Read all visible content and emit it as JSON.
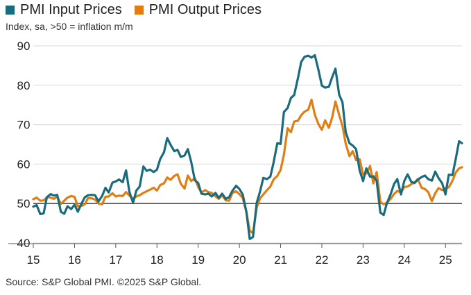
{
  "chart_data": {
    "type": "line",
    "title": "",
    "subtitle": "Index, sa, >50 = inflation m/m",
    "source": "Source: S&P Global PMI. ©2025 S&P Global.",
    "xlabel": "",
    "ylabel": "",
    "ylim": [
      40,
      90
    ],
    "yticks": [
      40,
      50,
      60,
      70,
      80,
      90
    ],
    "xlim": [
      2015.0,
      2025.4
    ],
    "xticks": [
      {
        "label": "15",
        "x": 2015
      },
      {
        "label": "16",
        "x": 2016
      },
      {
        "label": "17",
        "x": 2017
      },
      {
        "label": "18",
        "x": 2018
      },
      {
        "label": "19",
        "x": 2019
      },
      {
        "label": "20",
        "x": 2020
      },
      {
        "label": "21",
        "x": 2021
      },
      {
        "label": "22",
        "x": 2022
      },
      {
        "label": "23",
        "x": 2023
      },
      {
        "label": "24",
        "x": 2024
      },
      {
        "label": "25",
        "x": 2025
      }
    ],
    "grid": "horizontal",
    "legend_position": "top-left",
    "baseline": 50,
    "series": [
      {
        "name": "PMI Input Prices",
        "color": "#1a6b7c",
        "points": [
          [
            2015.0,
            49.2
          ],
          [
            2015.08,
            49.6
          ],
          [
            2015.17,
            47.3
          ],
          [
            2015.25,
            47.5
          ],
          [
            2015.33,
            51.6
          ],
          [
            2015.42,
            52.4
          ],
          [
            2015.5,
            52.0
          ],
          [
            2015.58,
            52.2
          ],
          [
            2015.67,
            47.9
          ],
          [
            2015.75,
            47.4
          ],
          [
            2015.83,
            49.3
          ],
          [
            2015.92,
            48.6
          ],
          [
            2016.0,
            49.7
          ],
          [
            2016.08,
            47.9
          ],
          [
            2016.17,
            50.0
          ],
          [
            2016.25,
            51.6
          ],
          [
            2016.33,
            52.1
          ],
          [
            2016.42,
            52.2
          ],
          [
            2016.5,
            52.1
          ],
          [
            2016.58,
            50.5
          ],
          [
            2016.67,
            51.9
          ],
          [
            2016.75,
            54.0
          ],
          [
            2016.83,
            52.8
          ],
          [
            2016.92,
            55.3
          ],
          [
            2017.0,
            55.6
          ],
          [
            2017.08,
            56.1
          ],
          [
            2017.17,
            55.4
          ],
          [
            2017.25,
            58.4
          ],
          [
            2017.33,
            53.0
          ],
          [
            2017.42,
            50.2
          ],
          [
            2017.5,
            53.3
          ],
          [
            2017.58,
            54.3
          ],
          [
            2017.67,
            59.4
          ],
          [
            2017.75,
            58.3
          ],
          [
            2017.83,
            58.6
          ],
          [
            2017.92,
            58.0
          ],
          [
            2018.0,
            58.6
          ],
          [
            2018.08,
            61.3
          ],
          [
            2018.17,
            63.0
          ],
          [
            2018.25,
            66.6
          ],
          [
            2018.33,
            64.9
          ],
          [
            2018.42,
            63.3
          ],
          [
            2018.5,
            63.6
          ],
          [
            2018.58,
            61.8
          ],
          [
            2018.67,
            62.2
          ],
          [
            2018.75,
            63.8
          ],
          [
            2018.83,
            60.6
          ],
          [
            2018.92,
            55.9
          ],
          [
            2019.0,
            55.2
          ],
          [
            2019.08,
            52.5
          ],
          [
            2019.17,
            52.3
          ],
          [
            2019.25,
            52.5
          ],
          [
            2019.33,
            51.8
          ],
          [
            2019.42,
            52.7
          ],
          [
            2019.5,
            51.4
          ],
          [
            2019.58,
            52.5
          ],
          [
            2019.67,
            51.2
          ],
          [
            2019.75,
            51.6
          ],
          [
            2019.83,
            53.2
          ],
          [
            2019.92,
            54.5
          ],
          [
            2020.0,
            53.7
          ],
          [
            2020.08,
            52.3
          ],
          [
            2020.17,
            47.9
          ],
          [
            2020.25,
            41.0
          ],
          [
            2020.33,
            41.5
          ],
          [
            2020.42,
            50.2
          ],
          [
            2020.5,
            53.0
          ],
          [
            2020.58,
            56.5
          ],
          [
            2020.67,
            56.2
          ],
          [
            2020.75,
            56.8
          ],
          [
            2020.83,
            60.4
          ],
          [
            2020.92,
            65.3
          ],
          [
            2021.0,
            65.1
          ],
          [
            2021.08,
            73.2
          ],
          [
            2021.17,
            74.2
          ],
          [
            2021.25,
            76.8
          ],
          [
            2021.33,
            77.5
          ],
          [
            2021.42,
            81.8
          ],
          [
            2021.5,
            85.9
          ],
          [
            2021.58,
            87.2
          ],
          [
            2021.67,
            87.5
          ],
          [
            2021.75,
            87.0
          ],
          [
            2021.83,
            87.6
          ],
          [
            2021.92,
            83.8
          ],
          [
            2022.0,
            79.9
          ],
          [
            2022.08,
            79.4
          ],
          [
            2022.17,
            79.6
          ],
          [
            2022.25,
            82.0
          ],
          [
            2022.33,
            84.2
          ],
          [
            2022.42,
            77.6
          ],
          [
            2022.5,
            75.7
          ],
          [
            2022.58,
            68.1
          ],
          [
            2022.67,
            65.3
          ],
          [
            2022.75,
            64.7
          ],
          [
            2022.83,
            63.8
          ],
          [
            2022.92,
            58.3
          ],
          [
            2023.0,
            55.7
          ],
          [
            2023.08,
            58.9
          ],
          [
            2023.17,
            56.8
          ],
          [
            2023.25,
            56.9
          ],
          [
            2023.33,
            55.8
          ],
          [
            2023.42,
            47.7
          ],
          [
            2023.5,
            47.1
          ],
          [
            2023.58,
            50.1
          ],
          [
            2023.67,
            52.4
          ],
          [
            2023.75,
            54.9
          ],
          [
            2023.83,
            56.2
          ],
          [
            2023.92,
            52.3
          ],
          [
            2024.0,
            55.7
          ],
          [
            2024.08,
            57.4
          ],
          [
            2024.17,
            55.5
          ],
          [
            2024.25,
            55.2
          ],
          [
            2024.33,
            56.1
          ],
          [
            2024.42,
            56.7
          ],
          [
            2024.5,
            57.1
          ],
          [
            2024.58,
            56.2
          ],
          [
            2024.67,
            55.8
          ],
          [
            2024.75,
            58.1
          ],
          [
            2024.83,
            56.5
          ],
          [
            2024.92,
            55.1
          ],
          [
            2025.0,
            52.3
          ],
          [
            2025.08,
            57.3
          ],
          [
            2025.17,
            57.2
          ],
          [
            2025.25,
            61.4
          ],
          [
            2025.33,
            65.8
          ],
          [
            2025.4,
            65.3
          ]
        ]
      },
      {
        "name": "PMI Output Prices",
        "color": "#e07e14",
        "points": [
          [
            2015.0,
            51.1
          ],
          [
            2015.08,
            51.5
          ],
          [
            2015.17,
            50.7
          ],
          [
            2015.25,
            50.8
          ],
          [
            2015.33,
            51.6
          ],
          [
            2015.42,
            51.5
          ],
          [
            2015.5,
            51.2
          ],
          [
            2015.58,
            51.7
          ],
          [
            2015.67,
            49.9
          ],
          [
            2015.75,
            50.7
          ],
          [
            2015.83,
            51.5
          ],
          [
            2015.92,
            51.9
          ],
          [
            2016.0,
            51.7
          ],
          [
            2016.08,
            49.3
          ],
          [
            2016.17,
            49.4
          ],
          [
            2016.25,
            49.8
          ],
          [
            2016.33,
            51.4
          ],
          [
            2016.42,
            51.3
          ],
          [
            2016.5,
            51.0
          ],
          [
            2016.58,
            50.0
          ],
          [
            2016.67,
            49.8
          ],
          [
            2016.75,
            51.7
          ],
          [
            2016.83,
            51.8
          ],
          [
            2016.92,
            52.6
          ],
          [
            2017.0,
            51.8
          ],
          [
            2017.08,
            52.0
          ],
          [
            2017.17,
            51.9
          ],
          [
            2017.25,
            52.9
          ],
          [
            2017.33,
            52.0
          ],
          [
            2017.42,
            51.2
          ],
          [
            2017.5,
            51.8
          ],
          [
            2017.58,
            52.1
          ],
          [
            2017.67,
            52.7
          ],
          [
            2017.75,
            53.1
          ],
          [
            2017.83,
            53.5
          ],
          [
            2017.92,
            54.0
          ],
          [
            2018.0,
            53.3
          ],
          [
            2018.08,
            54.7
          ],
          [
            2018.17,
            55.1
          ],
          [
            2018.25,
            56.6
          ],
          [
            2018.33,
            56.0
          ],
          [
            2018.42,
            57.0
          ],
          [
            2018.5,
            57.4
          ],
          [
            2018.58,
            55.0
          ],
          [
            2018.67,
            53.8
          ],
          [
            2018.75,
            57.1
          ],
          [
            2018.83,
            55.7
          ],
          [
            2018.92,
            56.4
          ],
          [
            2019.0,
            54.2
          ],
          [
            2019.08,
            52.8
          ],
          [
            2019.17,
            53.4
          ],
          [
            2019.25,
            52.9
          ],
          [
            2019.33,
            52.7
          ],
          [
            2019.42,
            51.8
          ],
          [
            2019.5,
            51.2
          ],
          [
            2019.58,
            52.1
          ],
          [
            2019.67,
            50.8
          ],
          [
            2019.75,
            50.7
          ],
          [
            2019.83,
            52.7
          ],
          [
            2019.92,
            53.1
          ],
          [
            2020.0,
            52.4
          ],
          [
            2020.08,
            51.4
          ],
          [
            2020.17,
            47.8
          ],
          [
            2020.25,
            43.1
          ],
          [
            2020.33,
            42.5
          ],
          [
            2020.42,
            49.0
          ],
          [
            2020.5,
            51.3
          ],
          [
            2020.58,
            52.3
          ],
          [
            2020.67,
            53.4
          ],
          [
            2020.75,
            54.3
          ],
          [
            2020.83,
            56.1
          ],
          [
            2020.92,
            57.0
          ],
          [
            2021.0,
            58.5
          ],
          [
            2021.08,
            62.4
          ],
          [
            2021.17,
            69.1
          ],
          [
            2021.25,
            68.1
          ],
          [
            2021.33,
            70.8
          ],
          [
            2021.42,
            71.0
          ],
          [
            2021.5,
            72.4
          ],
          [
            2021.58,
            73.3
          ],
          [
            2021.67,
            73.8
          ],
          [
            2021.75,
            76.3
          ],
          [
            2021.83,
            72.5
          ],
          [
            2021.92,
            70.1
          ],
          [
            2022.0,
            68.7
          ],
          [
            2022.08,
            71.1
          ],
          [
            2022.17,
            69.2
          ],
          [
            2022.25,
            71.8
          ],
          [
            2022.33,
            75.9
          ],
          [
            2022.42,
            72.5
          ],
          [
            2022.5,
            69.7
          ],
          [
            2022.58,
            65.2
          ],
          [
            2022.67,
            62.0
          ],
          [
            2022.75,
            63.3
          ],
          [
            2022.83,
            61.0
          ],
          [
            2022.92,
            61.2
          ],
          [
            2023.0,
            57.4
          ],
          [
            2023.08,
            57.6
          ],
          [
            2023.17,
            59.5
          ],
          [
            2023.25,
            55.1
          ],
          [
            2023.33,
            58.0
          ],
          [
            2023.42,
            50.4
          ],
          [
            2023.5,
            49.8
          ],
          [
            2023.58,
            50.2
          ],
          [
            2023.67,
            51.2
          ],
          [
            2023.75,
            52.4
          ],
          [
            2023.83,
            53.2
          ],
          [
            2023.92,
            52.8
          ],
          [
            2024.0,
            54.2
          ],
          [
            2024.08,
            54.3
          ],
          [
            2024.17,
            54.9
          ],
          [
            2024.25,
            55.4
          ],
          [
            2024.33,
            56.2
          ],
          [
            2024.42,
            54.0
          ],
          [
            2024.5,
            53.7
          ],
          [
            2024.58,
            52.9
          ],
          [
            2024.67,
            50.6
          ],
          [
            2024.75,
            52.6
          ],
          [
            2024.83,
            53.9
          ],
          [
            2024.92,
            53.4
          ],
          [
            2025.0,
            53.9
          ],
          [
            2025.08,
            54.1
          ],
          [
            2025.17,
            55.8
          ],
          [
            2025.25,
            57.9
          ],
          [
            2025.33,
            58.9
          ],
          [
            2025.4,
            59.2
          ]
        ]
      }
    ]
  }
}
